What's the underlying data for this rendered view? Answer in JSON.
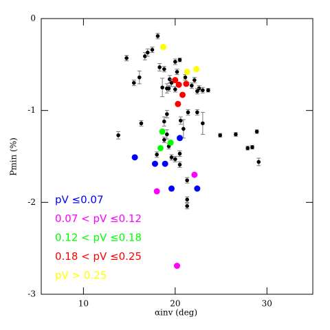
{
  "chart_data": {
    "type": "scatter",
    "x_label": "αinv (deg)",
    "y_label": "Pmin (%)",
    "xlim": [
      5.4,
      35
    ],
    "ylim": [
      -3,
      0
    ],
    "xticks": [
      10,
      20,
      30
    ],
    "yticks": [
      -3,
      -2,
      -1,
      0
    ],
    "series": [
      {
        "color": "#000000",
        "x": [
          18.1,
          14.7,
          16.7,
          17.0,
          17.5,
          18.3,
          16.1,
          15.5,
          18.8,
          20.0,
          20.5,
          20.2,
          19.4,
          19.1,
          19.3,
          18.6,
          19.6,
          20.0,
          21.1,
          22.1,
          22.6,
          23.0,
          23.6,
          21.8,
          22.4,
          19.1,
          18.8,
          19.1,
          21.4,
          20.6,
          20.9,
          22.4,
          23.0,
          18.8,
          19.3,
          19.6,
          20.0,
          20.5,
          20.5,
          18.0,
          13.8,
          16.3,
          21.3,
          21.3,
          21.3,
          24.9,
          26.6,
          27.9,
          28.4,
          28.9,
          29.1
        ],
        "values": [
          -0.19,
          -0.43,
          -0.41,
          -0.37,
          -0.34,
          -0.53,
          -0.64,
          -0.7,
          -0.55,
          -0.47,
          -0.45,
          -0.58,
          -0.66,
          -0.76,
          -0.76,
          -0.75,
          -0.7,
          -0.77,
          -0.64,
          -0.67,
          -0.76,
          -0.78,
          -0.78,
          -0.73,
          -0.79,
          -1.04,
          -1.12,
          -1.26,
          -1.02,
          -1.11,
          -1.2,
          -1.02,
          -1.14,
          -1.32,
          -1.39,
          -1.51,
          -1.53,
          -1.47,
          -1.59,
          -1.48,
          -1.27,
          -1.14,
          -1.76,
          -1.97,
          -2.04,
          -1.27,
          -1.26,
          -1.41,
          -1.4,
          -1.23,
          -1.56
        ],
        "errors": [
          0.03,
          0.03,
          0.04,
          0.04,
          0.03,
          0.04,
          0.07,
          0.03,
          0.03,
          0.03,
          0.02,
          0.03,
          0.04,
          0.05,
          0.03,
          0.1,
          0.04,
          0.03,
          0.03,
          0.03,
          0.03,
          0.03,
          0.02,
          0.03,
          0.03,
          0.04,
          0.05,
          0.05,
          0.03,
          0.04,
          0.1,
          0.03,
          0.12,
          0.03,
          0.03,
          0.03,
          0.03,
          0.03,
          0.03,
          0.03,
          0.04,
          0.03,
          0.03,
          0.03,
          0.03,
          0.02,
          0.02,
          0.02,
          0.02,
          0.02,
          0.04
        ]
      },
      {
        "name": "pV ≤0.07",
        "color": "#0000ff",
        "x": [
          15.6,
          20.5,
          17.8,
          18.9,
          19.6,
          22.4
        ],
        "values": [
          -1.51,
          -1.3,
          -1.58,
          -1.58,
          -1.85,
          -1.85
        ]
      },
      {
        "name": "0.07 < pV ≤0.12",
        "color": "#ff00ff",
        "x": [
          18.0,
          22.1,
          20.2
        ],
        "values": [
          -1.88,
          -1.7,
          -2.69
        ]
      },
      {
        "name": "0.12 < pV ≤0.18",
        "color": "#00ff00",
        "x": [
          18.6,
          19.5,
          18.4
        ],
        "values": [
          -1.23,
          -1.35,
          -1.41
        ]
      },
      {
        "name": "0.18 < pV ≤0.25",
        "color": "#ff0000",
        "x": [
          20.0,
          20.4,
          21.2,
          20.8,
          20.3
        ],
        "values": [
          -0.67,
          -0.72,
          -0.71,
          -0.83,
          -0.93
        ]
      },
      {
        "name": "pV > 0.25",
        "color": "#ffff00",
        "x": [
          18.7,
          21.3,
          22.3
        ],
        "values": [
          -0.31,
          -0.58,
          -0.55
        ]
      }
    ]
  }
}
